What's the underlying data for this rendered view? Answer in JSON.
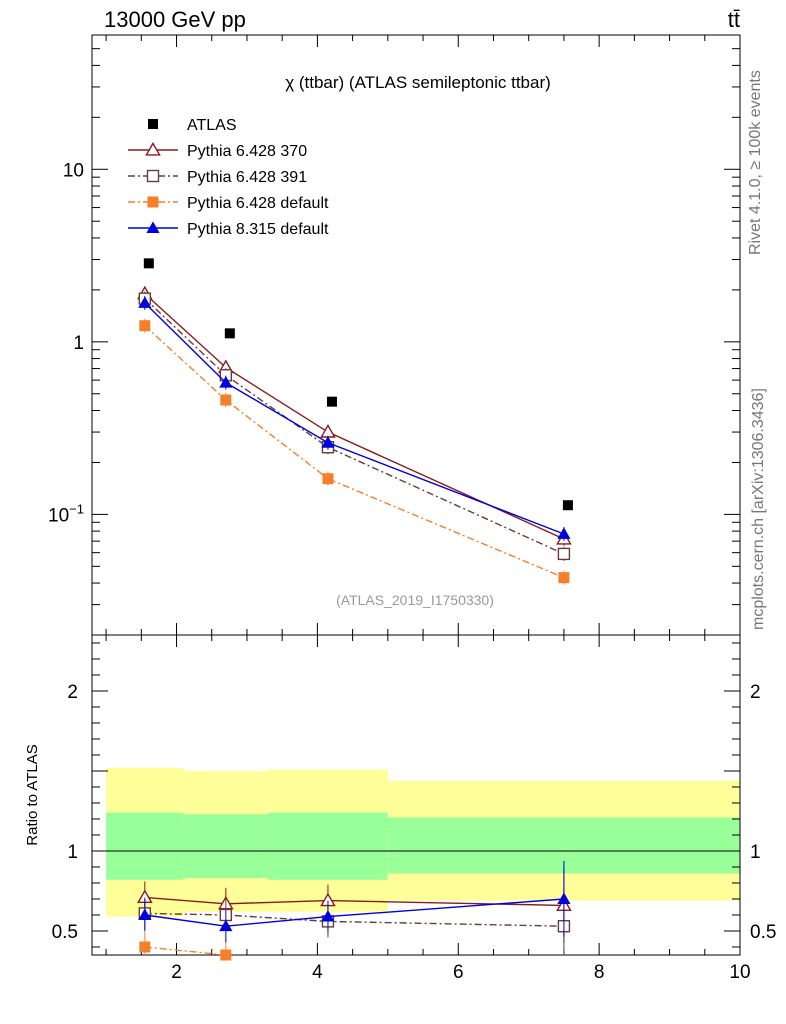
{
  "header": {
    "energy_label": "13000 GeV pp",
    "process_label": "tt̄"
  },
  "side": {
    "rivet_label": "Rivet 4.1.0, ≥ 100k events",
    "source_label": "mcplots.cern.ch [arXiv:1306.3436]"
  },
  "chart_data": {
    "type": "line",
    "title": "χ (ttbar) (ATLAS semileptonic ttbar)",
    "analysis_tag": "(ATLAS_2019_I1750330)",
    "yscale": "log",
    "ylim": [
      0.02,
      60
    ],
    "xlim": [
      0.8,
      10
    ],
    "x_ticks": [
      "2",
      "4",
      "6",
      "8",
      "10"
    ],
    "y_ticks": [
      {
        "value": 10,
        "label": "10"
      },
      {
        "value": 1,
        "label": "1"
      },
      {
        "value": 0.1,
        "label": "10^-1"
      }
    ],
    "bin_edges": [
      1,
      2.1,
      3.3,
      5,
      10
    ],
    "x": [
      1.55,
      2.7,
      4.15,
      7.5
    ],
    "legend_position": "top-left",
    "data": {
      "name": "ATLAS",
      "color": "#000000",
      "values": [
        2.85,
        1.12,
        0.45,
        0.113
      ]
    },
    "series": [
      {
        "name": "Pythia 6.428 370",
        "color": "#8b1a1a",
        "marker": "open-triangle",
        "dash": "solid",
        "values": [
          1.9,
          0.71,
          0.3,
          0.072
        ]
      },
      {
        "name": "Pythia 6.428 391",
        "color": "#6b3a3a",
        "marker": "open-square",
        "dash": "dashdot",
        "values": [
          1.78,
          0.64,
          0.245,
          0.059
        ]
      },
      {
        "name": "Pythia 6.428 default",
        "color": "#f57f2a",
        "marker": "filled-square",
        "dash": "dashdot",
        "values": [
          1.24,
          0.46,
          0.161,
          0.043
        ]
      },
      {
        "name": "Pythia 8.315 default",
        "color": "#0000dd",
        "marker": "filled-triangle",
        "dash": "solid",
        "values": [
          1.68,
          0.58,
          0.26,
          0.077
        ]
      }
    ],
    "ratio": {
      "ylabel": "Ratio to ATLAS",
      "ylim": [
        0.35,
        2.35
      ],
      "y_ticks": [
        "0.5",
        "1",
        "2"
      ],
      "band_inner": [
        [
          0.82,
          1.24
        ],
        [
          0.83,
          1.23
        ],
        [
          0.82,
          1.24
        ],
        [
          0.86,
          1.21
        ]
      ],
      "band_outer": [
        [
          0.59,
          1.52
        ],
        [
          0.62,
          1.5
        ],
        [
          0.62,
          1.51
        ],
        [
          0.69,
          1.44
        ]
      ],
      "series_values": [
        [
          0.71,
          0.67,
          0.69,
          0.66
        ],
        [
          0.61,
          0.6,
          0.56,
          0.53
        ],
        [
          0.4,
          0.35,
          null,
          null
        ],
        [
          0.6,
          0.53,
          0.59,
          0.7
        ]
      ]
    }
  }
}
